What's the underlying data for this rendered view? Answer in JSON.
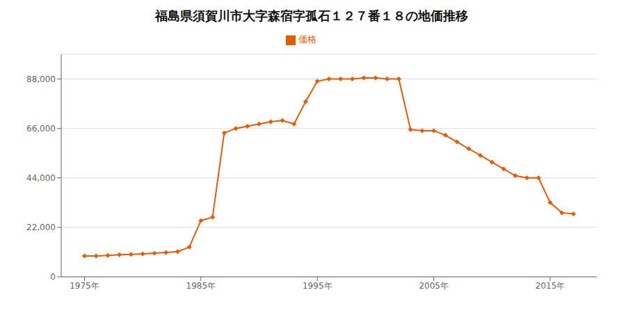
{
  "chart_data": {
    "type": "line",
    "title": "福島県須賀川市大字森宿字孤石１２７番１８の地価推移",
    "x": [
      1975,
      1976,
      1977,
      1978,
      1979,
      1980,
      1981,
      1982,
      1983,
      1984,
      1985,
      1986,
      1987,
      1988,
      1989,
      1990,
      1991,
      1992,
      1993,
      1994,
      1995,
      1996,
      1997,
      1998,
      1999,
      2000,
      2001,
      2002,
      2003,
      2004,
      2005,
      2006,
      2007,
      2008,
      2009,
      2010,
      2011,
      2012,
      2013,
      2014,
      2015,
      2016,
      2017
    ],
    "series": [
      {
        "name": "価格",
        "color": "#e85a00",
        "marker": "diamond",
        "values": [
          9300,
          9300,
          9500,
          9800,
          10000,
          10200,
          10500,
          10800,
          11200,
          13200,
          25000,
          26500,
          64000,
          66000,
          67000,
          68000,
          69000,
          69500,
          68000,
          78000,
          87000,
          88000,
          88000,
          88000,
          88500,
          88500,
          88000,
          88000,
          65500,
          65000,
          65000,
          63000,
          60000,
          57000,
          54000,
          51000,
          48000,
          45000,
          44000,
          44000,
          33000,
          28500,
          28000
        ]
      }
    ],
    "xlim": [
      1973,
      2019
    ],
    "xticks": [
      {
        "value": 1975,
        "label": "1975年"
      },
      {
        "value": 1985,
        "label": "1985年"
      },
      {
        "value": 1995,
        "label": "1995年"
      },
      {
        "value": 2005,
        "label": "2005年"
      },
      {
        "value": 2015,
        "label": "2015年"
      }
    ],
    "ylim": [
      0,
      99000
    ],
    "yticks": [
      0,
      {
        "value": 22000,
        "label": "22,000"
      },
      {
        "value": 44000,
        "label": "44,000"
      },
      {
        "value": 66000,
        "label": "66,000"
      },
      {
        "value": 88000,
        "label": "88,000"
      }
    ],
    "grid": "y",
    "legend": "top"
  }
}
